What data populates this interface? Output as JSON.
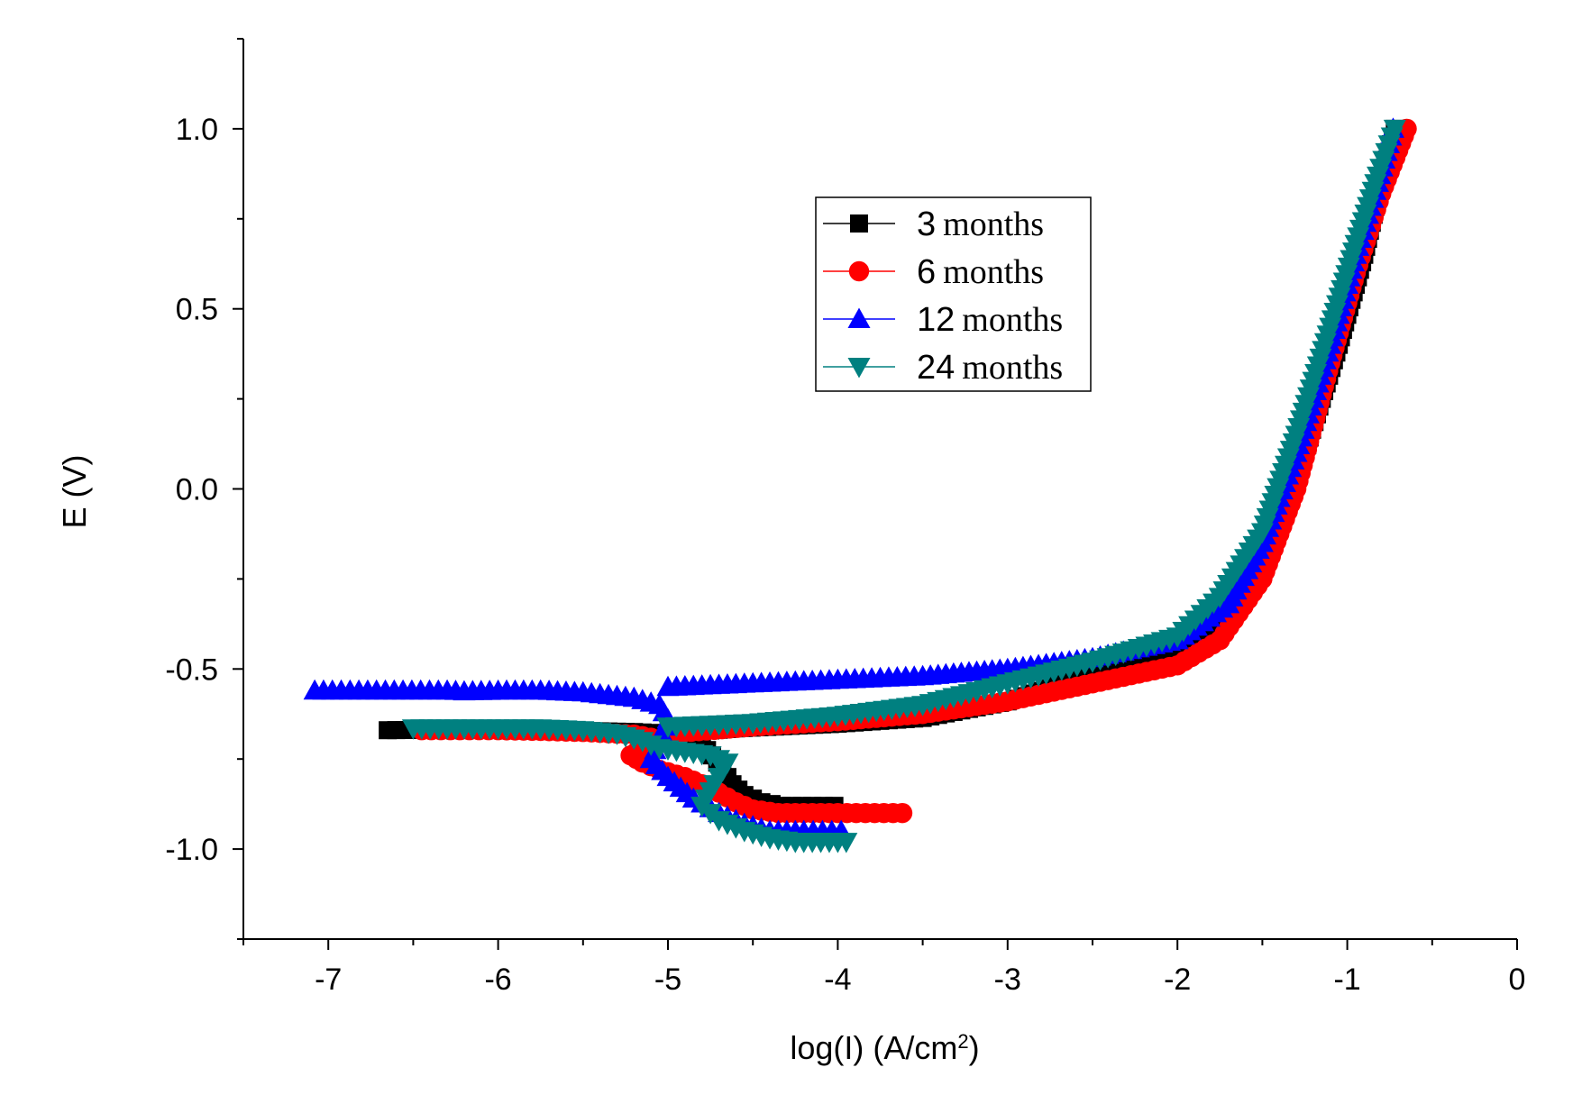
{
  "chart_data": {
    "type": "scatter",
    "xlabel_main": "log(I) (A/cm",
    "xlabel_sup": "2",
    "xlabel_end": ")",
    "ylabel": "E (V)",
    "xlim": [
      -7.5,
      0
    ],
    "ylim": [
      -1.25,
      1.25
    ],
    "x_ticks": [
      -7,
      -6,
      -5,
      -4,
      -3,
      -2,
      -1,
      0
    ],
    "y_ticks": [
      -1.0,
      -0.5,
      0.0,
      0.5,
      1.0
    ],
    "x_tick_labels": [
      "-7",
      "-6",
      "-5",
      "-4",
      "-3",
      "-2",
      "-1",
      "0"
    ],
    "y_tick_labels": [
      "-1.0",
      "-0.5",
      "0.0",
      "0.5",
      "1.0"
    ],
    "legend_position": "top-center",
    "series": [
      {
        "number": "3",
        "unit": "months",
        "color": "#000000",
        "marker": "square",
        "cathodic": [
          [
            -4.02,
            -0.88
          ],
          [
            -4.15,
            -0.88
          ],
          [
            -4.33,
            -0.88
          ],
          [
            -4.45,
            -0.87
          ],
          [
            -4.55,
            -0.85
          ],
          [
            -4.62,
            -0.82
          ],
          [
            -4.68,
            -0.78
          ],
          [
            -4.74,
            -0.74
          ],
          [
            -4.8,
            -0.71
          ],
          [
            -4.9,
            -0.69
          ],
          [
            -5.0,
            -0.68
          ],
          [
            -5.2,
            -0.675
          ],
          [
            -5.5,
            -0.672
          ],
          [
            -5.85,
            -0.67
          ],
          [
            -6.3,
            -0.668
          ],
          [
            -6.65,
            -0.67
          ]
        ],
        "anodic": [
          [
            -5.0,
            -0.68
          ],
          [
            -4.6,
            -0.665
          ],
          [
            -4.0,
            -0.652
          ],
          [
            -3.5,
            -0.636
          ],
          [
            -3.0,
            -0.59
          ],
          [
            -2.5,
            -0.51
          ],
          [
            -2.0,
            -0.44
          ],
          [
            -1.7,
            -0.35
          ],
          [
            -1.45,
            -0.15
          ],
          [
            -1.25,
            0.1
          ],
          [
            -1.05,
            0.4
          ],
          [
            -0.9,
            0.65
          ],
          [
            -0.8,
            0.85
          ],
          [
            -0.72,
            1.0
          ]
        ]
      },
      {
        "number": "6",
        "unit": "months",
        "color": "#ff0000",
        "marker": "circle",
        "cathodic": [
          [
            -3.62,
            -0.9
          ],
          [
            -4.0,
            -0.9
          ],
          [
            -4.2,
            -0.9
          ],
          [
            -4.35,
            -0.9
          ],
          [
            -4.5,
            -0.89
          ],
          [
            -4.6,
            -0.87
          ],
          [
            -4.75,
            -0.83
          ],
          [
            -4.9,
            -0.8
          ],
          [
            -5.05,
            -0.78
          ],
          [
            -5.15,
            -0.76
          ],
          [
            -5.22,
            -0.74
          ],
          [
            -5.15,
            -0.72
          ],
          [
            -5.0,
            -0.7
          ],
          [
            -5.2,
            -0.682
          ],
          [
            -5.5,
            -0.675
          ],
          [
            -5.75,
            -0.672
          ],
          [
            -6.0,
            -0.67
          ],
          [
            -6.45,
            -0.67
          ]
        ],
        "anodic": [
          [
            -5.0,
            -0.68
          ],
          [
            -4.5,
            -0.66
          ],
          [
            -4.0,
            -0.645
          ],
          [
            -3.5,
            -0.625
          ],
          [
            -3.0,
            -0.59
          ],
          [
            -2.5,
            -0.54
          ],
          [
            -2.0,
            -0.49
          ],
          [
            -1.75,
            -0.42
          ],
          [
            -1.5,
            -0.25
          ],
          [
            -1.3,
            0.0
          ],
          [
            -1.1,
            0.35
          ],
          [
            -0.95,
            0.6
          ],
          [
            -0.8,
            0.82
          ],
          [
            -0.65,
            1.0
          ]
        ]
      },
      {
        "number": "12",
        "unit": "months",
        "color": "#0000ff",
        "marker": "triangle-up",
        "cathodic": [
          [
            -3.98,
            -0.95
          ],
          [
            -4.2,
            -0.95
          ],
          [
            -4.4,
            -0.95
          ],
          [
            -4.55,
            -0.93
          ],
          [
            -4.7,
            -0.9
          ],
          [
            -4.85,
            -0.86
          ],
          [
            -5.0,
            -0.8
          ],
          [
            -5.1,
            -0.75
          ],
          [
            -5.05,
            -0.7
          ],
          [
            -5.0,
            -0.64
          ],
          [
            -5.05,
            -0.6
          ],
          [
            -5.2,
            -0.58
          ],
          [
            -5.5,
            -0.565
          ],
          [
            -5.75,
            -0.56
          ],
          [
            -5.95,
            -0.56
          ],
          [
            -6.2,
            -0.562
          ],
          [
            -6.3,
            -0.56
          ],
          [
            -7.08,
            -0.56
          ]
        ],
        "anodic": [
          [
            -5.0,
            -0.55
          ],
          [
            -4.5,
            -0.54
          ],
          [
            -4.0,
            -0.53
          ],
          [
            -3.5,
            -0.52
          ],
          [
            -3.0,
            -0.5
          ],
          [
            -2.5,
            -0.47
          ],
          [
            -2.0,
            -0.42
          ],
          [
            -1.7,
            -0.32
          ],
          [
            -1.5,
            -0.15
          ],
          [
            -1.3,
            0.1
          ],
          [
            -1.1,
            0.4
          ],
          [
            -0.95,
            0.65
          ],
          [
            -0.82,
            0.85
          ],
          [
            -0.73,
            1.0
          ]
        ]
      },
      {
        "number": "24",
        "unit": "months",
        "color": "#008080",
        "marker": "triangle-down",
        "cathodic": [
          [
            -3.95,
            -0.98
          ],
          [
            -4.1,
            -0.98
          ],
          [
            -4.25,
            -0.98
          ],
          [
            -4.4,
            -0.97
          ],
          [
            -4.55,
            -0.95
          ],
          [
            -4.7,
            -0.92
          ],
          [
            -4.8,
            -0.88
          ],
          [
            -4.75,
            -0.84
          ],
          [
            -4.7,
            -0.8
          ],
          [
            -4.65,
            -0.76
          ],
          [
            -4.75,
            -0.74
          ],
          [
            -4.9,
            -0.73
          ],
          [
            -5.05,
            -0.72
          ],
          [
            -5.15,
            -0.7
          ],
          [
            -5.3,
            -0.68
          ],
          [
            -5.5,
            -0.67
          ],
          [
            -5.75,
            -0.665
          ],
          [
            -6.0,
            -0.665
          ],
          [
            -6.3,
            -0.665
          ],
          [
            -6.5,
            -0.665
          ]
        ],
        "anodic": [
          [
            -5.0,
            -0.66
          ],
          [
            -4.5,
            -0.65
          ],
          [
            -4.0,
            -0.63
          ],
          [
            -3.5,
            -0.6
          ],
          [
            -3.0,
            -0.54
          ],
          [
            -2.5,
            -0.48
          ],
          [
            -2.0,
            -0.41
          ],
          [
            -1.75,
            -0.3
          ],
          [
            -1.5,
            -0.12
          ],
          [
            -1.3,
            0.15
          ],
          [
            -1.1,
            0.45
          ],
          [
            -0.95,
            0.68
          ],
          [
            -0.82,
            0.87
          ],
          [
            -0.72,
            1.0
          ]
        ]
      }
    ]
  }
}
